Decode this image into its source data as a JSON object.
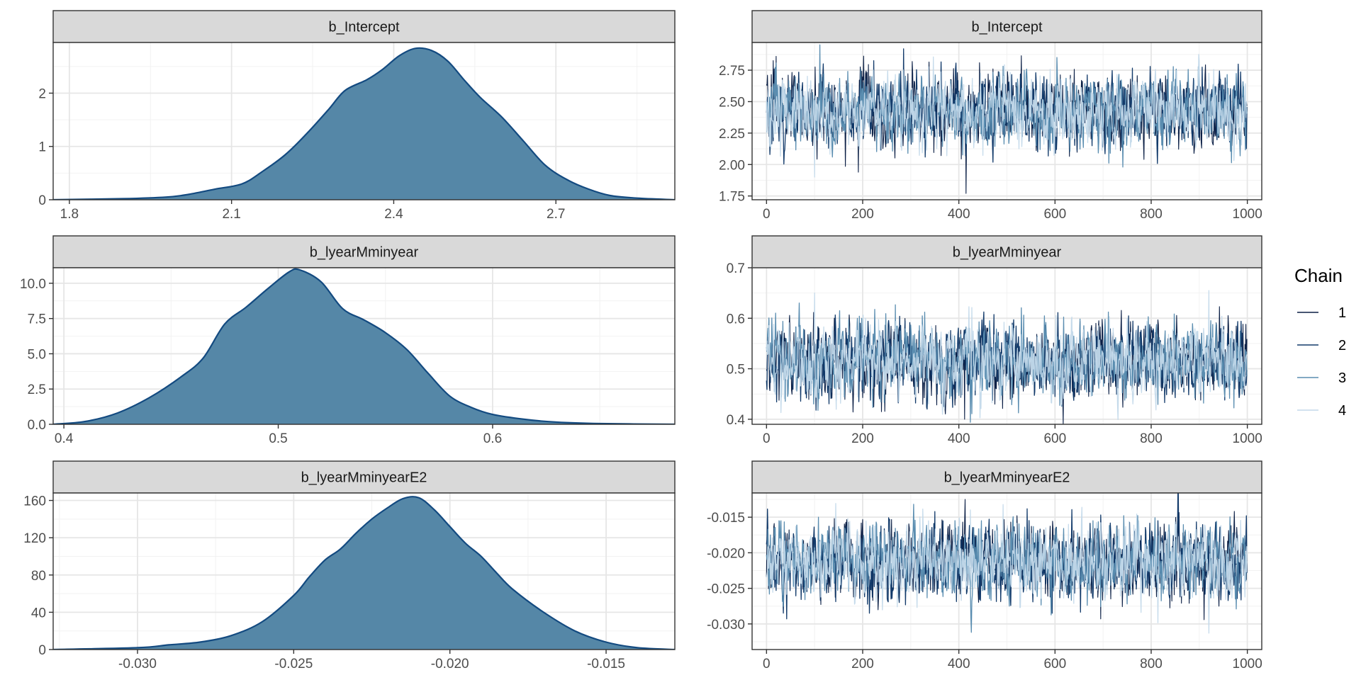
{
  "chart_data": [
    {
      "type": "area",
      "panel": "density",
      "title": "b_Intercept",
      "xlim": [
        1.77,
        2.92
      ],
      "ylim": [
        0,
        2.95
      ],
      "xticks": [
        1.8,
        2.1,
        2.4,
        2.7
      ],
      "xtick_labels": [
        "1.8",
        "2.1",
        "2.4",
        "2.7"
      ],
      "yticks": [
        0,
        1,
        2
      ],
      "ytick_labels": [
        "0",
        "1",
        "2"
      ],
      "x": [
        1.77,
        1.9,
        1.98,
        2.02,
        2.07,
        2.12,
        2.16,
        2.2,
        2.24,
        2.28,
        2.31,
        2.35,
        2.38,
        2.41,
        2.44,
        2.47,
        2.5,
        2.53,
        2.56,
        2.6,
        2.64,
        2.68,
        2.72,
        2.76,
        2.8,
        2.85,
        2.92
      ],
      "y": [
        0,
        0.02,
        0.05,
        0.1,
        0.2,
        0.3,
        0.55,
        0.85,
        1.25,
        1.7,
        2.05,
        2.25,
        2.45,
        2.7,
        2.84,
        2.8,
        2.6,
        2.25,
        1.92,
        1.55,
        1.1,
        0.65,
        0.38,
        0.2,
        0.08,
        0.03,
        0
      ]
    },
    {
      "type": "line",
      "panel": "trace",
      "title": "b_Intercept",
      "xlim": [
        -30,
        1030
      ],
      "ylim": [
        1.72,
        2.97
      ],
      "xticks": [
        0,
        200,
        400,
        600,
        800,
        1000
      ],
      "xtick_labels": [
        "0",
        "200",
        "400",
        "600",
        "800",
        "1000"
      ],
      "yticks": [
        1.75,
        2.0,
        2.25,
        2.5,
        2.75
      ],
      "ytick_labels": [
        "1.75",
        "2.00",
        "2.25",
        "2.50",
        "2.75"
      ],
      "n_iter": 1000,
      "mean": 2.43,
      "sd": 0.14,
      "spikes": [
        {
          "series": 1,
          "x": 415,
          "y": 1.77
        },
        {
          "series": 2,
          "x": 285,
          "y": 2.92
        },
        {
          "series": 1,
          "x": 20,
          "y": 2.86
        },
        {
          "series": 4,
          "x": 100,
          "y": 1.9
        }
      ]
    },
    {
      "type": "area",
      "panel": "density",
      "title": "b_lyearMminyear",
      "xlim": [
        0.395,
        0.685
      ],
      "ylim": [
        0,
        11.1
      ],
      "xticks": [
        0.4,
        0.5,
        0.6
      ],
      "xtick_labels": [
        "0.4",
        "0.5",
        "0.6"
      ],
      "yticks": [
        0,
        2.5,
        5,
        7.5,
        10
      ],
      "ytick_labels": [
        "0.0",
        "2.5",
        "5.0",
        "7.5",
        "10.0"
      ],
      "x": [
        0.395,
        0.41,
        0.425,
        0.44,
        0.455,
        0.465,
        0.475,
        0.485,
        0.495,
        0.505,
        0.51,
        0.52,
        0.53,
        0.54,
        0.55,
        0.56,
        0.57,
        0.58,
        0.59,
        0.6,
        0.615,
        0.63,
        0.65,
        0.685
      ],
      "y": [
        0,
        0.2,
        0.8,
        1.9,
        3.4,
        4.7,
        7.1,
        8.3,
        9.6,
        10.8,
        10.95,
        10.1,
        8.2,
        7.4,
        6.5,
        5.3,
        3.6,
        2.0,
        1.2,
        0.7,
        0.35,
        0.15,
        0.05,
        0
      ]
    },
    {
      "type": "line",
      "panel": "trace",
      "title": "b_lyearMminyear",
      "xlim": [
        -30,
        1030
      ],
      "ylim": [
        0.39,
        0.7
      ],
      "xticks": [
        0,
        200,
        400,
        600,
        800,
        1000
      ],
      "xtick_labels": [
        "0",
        "200",
        "400",
        "600",
        "800",
        "1000"
      ],
      "yticks": [
        0.4,
        0.5,
        0.6,
        0.7
      ],
      "ytick_labels": [
        "0.4",
        "0.5",
        "0.6",
        "0.7"
      ],
      "n_iter": 1000,
      "mean": 0.515,
      "sd": 0.037,
      "spikes": [
        {
          "series": 1,
          "x": 412,
          "y": 0.69
        },
        {
          "series": 1,
          "x": 412,
          "y": 0.4
        },
        {
          "series": 4,
          "x": 920,
          "y": 0.655
        },
        {
          "series": 4,
          "x": 100,
          "y": 0.65
        }
      ]
    },
    {
      "type": "area",
      "panel": "density",
      "title": "b_lyearMminyearE2",
      "xlim": [
        -0.0327,
        -0.0128
      ],
      "ylim": [
        0,
        168
      ],
      "xticks": [
        -0.03,
        -0.025,
        -0.02,
        -0.015
      ],
      "xtick_labels": [
        "-0.030",
        "-0.025",
        "-0.020",
        "-0.015"
      ],
      "yticks": [
        0,
        40,
        80,
        120,
        160
      ],
      "ytick_labels": [
        "0",
        "40",
        "80",
        "120",
        "160"
      ],
      "x": [
        -0.0327,
        -0.03,
        -0.029,
        -0.028,
        -0.027,
        -0.026,
        -0.025,
        -0.0245,
        -0.024,
        -0.0235,
        -0.023,
        -0.0225,
        -0.022,
        -0.0215,
        -0.021,
        -0.0205,
        -0.02,
        -0.0195,
        -0.019,
        -0.0185,
        -0.018,
        -0.017,
        -0.016,
        -0.015,
        -0.014,
        -0.0128
      ],
      "y": [
        0,
        2,
        5,
        8,
        15,
        30,
        58,
        78,
        96,
        108,
        125,
        140,
        152,
        162,
        163,
        150,
        132,
        114,
        100,
        82,
        65,
        40,
        20,
        8,
        2,
        0
      ]
    },
    {
      "type": "line",
      "panel": "trace",
      "title": "b_lyearMminyearE2",
      "xlim": [
        -30,
        1030
      ],
      "ylim": [
        -0.0336,
        -0.0116
      ],
      "xticks": [
        0,
        200,
        400,
        600,
        800,
        1000
      ],
      "xtick_labels": [
        "0",
        "200",
        "400",
        "600",
        "800",
        "1000"
      ],
      "yticks": [
        -0.03,
        -0.025,
        -0.02,
        -0.015
      ],
      "ytick_labels": [
        "-0.030",
        "-0.025",
        "-0.020",
        "-0.015"
      ],
      "n_iter": 1000,
      "mean": -0.0212,
      "sd": 0.0026,
      "spikes": [
        {
          "series": 1,
          "x": 413,
          "y": -0.0327
        },
        {
          "series": 1,
          "x": 413,
          "y": -0.0125
        },
        {
          "series": 4,
          "x": 920,
          "y": -0.0313
        }
      ]
    }
  ],
  "legend": {
    "title": "Chain",
    "placement": "right",
    "items": [
      {
        "label": "1",
        "color": "#0b1f45"
      },
      {
        "label": "2",
        "color": "#123a6a"
      },
      {
        "label": "3",
        "color": "#5a8db0"
      },
      {
        "label": "4",
        "color": "#c3d9ea"
      }
    ]
  },
  "colors": {
    "density_fill": "#5587a7",
    "density_line": "#134a80",
    "strip_fill": "#d9d9d9",
    "grid_major": "#e6e6e6",
    "grid_minor": "#f2f2f2"
  }
}
